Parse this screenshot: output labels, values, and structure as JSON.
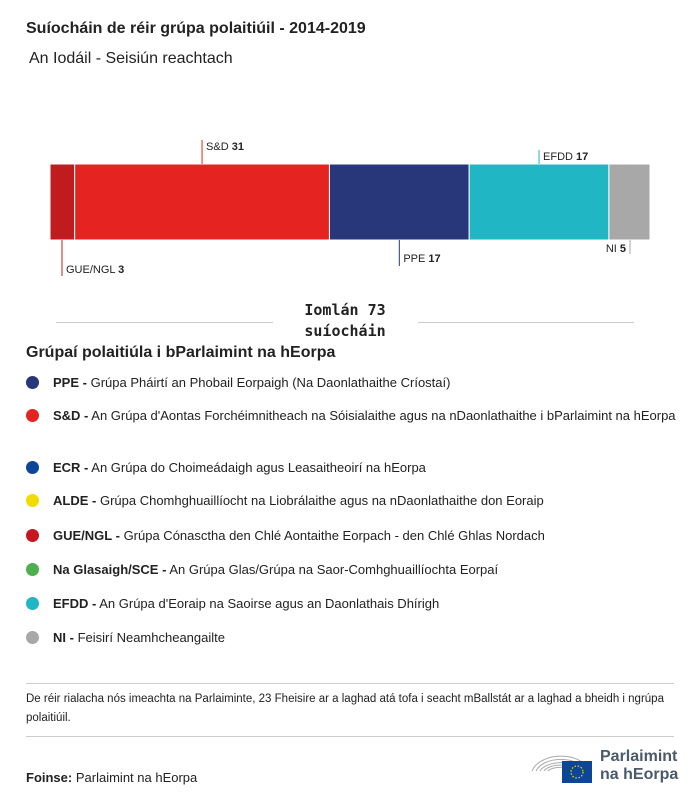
{
  "header": {
    "title": "Suíocháin de réir grúpa polaitiúil - 2014-2019",
    "subtitle": "An Iodáil - Seisiún reachtach"
  },
  "chart_data": {
    "type": "bar",
    "orientation": "stacked-horizontal",
    "categories": [
      "GUE/NGL",
      "S&D",
      "PPE",
      "EFDD",
      "NI"
    ],
    "values": [
      3,
      31,
      17,
      17,
      5
    ],
    "colors": [
      "#c21b1f",
      "#e52421",
      "#283779",
      "#20b6c4",
      "#a8a8a8"
    ],
    "label_positions": [
      "below",
      "above",
      "below",
      "above",
      "below"
    ],
    "total_label": "Iomlán 73 suíocháin"
  },
  "legend": {
    "title": "Grúpaí polaitiúla i bParlaimint na hEorpa",
    "items": [
      {
        "abbr": "PPE -",
        "name": "Grúpa Pháirtí an Phobail Eorpaigh (Na Daonlathaithe Críostaí)",
        "color": "#283779"
      },
      {
        "abbr": "S&D -",
        "name": "An Grúpa d'Aontas Forchéimnitheach na Sóisialaithe agus na nDaonlathaithe i bParlaimint na hEorpa",
        "color": "#e52421"
      },
      {
        "abbr": "ECR -",
        "name": "An Grúpa do Choimeádaigh agus Leasaitheoirí na hEorpa",
        "color": "#0d4694"
      },
      {
        "abbr": "ALDE -",
        "name": "Grúpa Chomhghuaillíocht na Liobrálaithe agus na nDaonlathaithe don Eoraip",
        "color": "#f0dc00"
      },
      {
        "abbr": "GUE/NGL -",
        "name": "Grúpa Cónasctha den Chlé Aontaithe Eorpach - den Chlé Ghlas Nordach",
        "color": "#c7161d"
      },
      {
        "abbr": "Na Glasaigh/SCE -",
        "name": "An Grúpa Glas/Grúpa na Saor-Comhghuaillíochta Eorpaí",
        "color": "#4caf50"
      },
      {
        "abbr": "EFDD -",
        "name": "An Grúpa d'Eoraip na Saoirse agus an Daonlathais Dhírigh",
        "color": "#20b6c4"
      },
      {
        "abbr": "NI -",
        "name": "Feisirí Neamhcheangailte",
        "color": "#a8a8a8"
      }
    ]
  },
  "note": "De réir rialacha nós imeachta na Parlaiminte, 23 Fheisire ar a laghad atá tofa i seacht mBallstát ar a laghad a bheidh i ngrúpa polaitiúil.",
  "source": {
    "label": "Foinse:",
    "value": "Parlaimint na hEorpa"
  },
  "logo": {
    "line1": "Parlaimint",
    "line2": "na hEorpa"
  }
}
